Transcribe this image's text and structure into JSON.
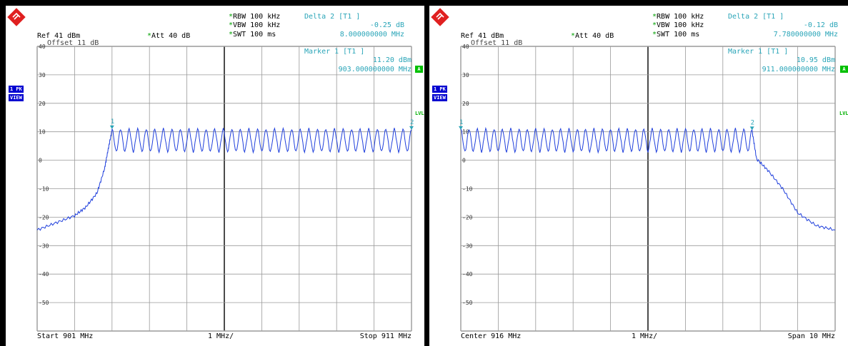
{
  "panels": [
    {
      "id": "left",
      "header": {
        "ref": "Ref  41 dBm",
        "att_label": "Att  40 dB",
        "rbw": "RBW 100 kHz",
        "vbw": "VBW 100 kHz",
        "swt": "SWT 100 ms",
        "delta_title": "Delta 2 [T1 ]",
        "delta_level": "-0.25 dB",
        "delta_freq": "8.000000000 MHz",
        "offset_label": "Offset  11 dB",
        "marker_title": "Marker 1 [T1 ]",
        "marker_level": "11.20 dBm",
        "marker_freq": "903.000000000 MHz"
      },
      "footer": {
        "left": "Start 901 MHz",
        "center": "1 MHz/",
        "right": "Stop 911 MHz"
      },
      "side": {
        "trace_label": "1 PK",
        "view_label": "VIEW",
        "a_label": "A",
        "lvl_label": "LVL"
      },
      "marker_labels": [
        "1",
        "2"
      ]
    },
    {
      "id": "right",
      "header": {
        "ref": "Ref  41 dBm",
        "att_label": "Att  40 dB",
        "rbw": "RBW 100 kHz",
        "vbw": "VBW 100 kHz",
        "swt": "SWT 100 ms",
        "delta_title": "Delta 2 [T1 ]",
        "delta_level": "-0.12 dB",
        "delta_freq": "7.780000000 MHz",
        "offset_label": "Offset  11 dB",
        "marker_title": "Marker 1 [T1 ]",
        "marker_level": "10.95 dBm",
        "marker_freq": "911.000000000 MHz"
      },
      "footer": {
        "left": "Center 916 MHz",
        "center": "1 MHz/",
        "right": "Span 10 MHz"
      },
      "side": {
        "trace_label": "1 PK",
        "view_label": "VIEW",
        "a_label": "A",
        "lvl_label": "LVL"
      },
      "marker_labels": [
        "1",
        "2"
      ]
    }
  ],
  "chart_data": [
    {
      "type": "line",
      "title": "",
      "xlabel": "",
      "ylabel": "",
      "x_range_mhz": [
        901,
        911
      ],
      "ylim": [
        -60,
        40
      ],
      "y_ticks": [
        40,
        30,
        20,
        10,
        0,
        -10,
        -20,
        -30,
        -40,
        -50
      ],
      "grid": true,
      "series": [
        {
          "x": [
            901.0,
            901.5,
            902.0,
            902.3,
            902.6,
            902.8,
            902.9,
            903.0
          ],
          "y": [
            -24.5,
            -22.0,
            -19.5,
            -16.5,
            -11.5,
            -3.0,
            4.0,
            10.5
          ]
        }
      ],
      "hopping_band": {
        "x_start": 903.0,
        "x_end": 911.0,
        "channels": 35,
        "peak": 11.0,
        "trough": 3.0
      },
      "markers": [
        {
          "label": "1",
          "x": 903.0,
          "y": 11.2
        },
        {
          "label": "2",
          "x": 911.0,
          "y": 10.95
        }
      ]
    },
    {
      "type": "line",
      "title": "",
      "xlabel": "",
      "ylabel": "",
      "x_range_mhz": [
        911,
        921
      ],
      "ylim": [
        -60,
        40
      ],
      "y_ticks": [
        40,
        30,
        20,
        10,
        0,
        -10,
        -20,
        -30,
        -40,
        -50
      ],
      "grid": true,
      "hopping_band": {
        "x_start": 911.0,
        "x_end": 918.78,
        "channels": 35,
        "peak": 11.0,
        "trough": 3.0
      },
      "series": [
        {
          "x": [
            918.78,
            918.9,
            919.2,
            919.6,
            920.0,
            920.5,
            921.0
          ],
          "y": [
            10.5,
            0.5,
            -3.5,
            -10.0,
            -18.5,
            -23.0,
            -24.5
          ]
        }
      ],
      "markers": [
        {
          "label": "1",
          "x": 911.0,
          "y": 10.95
        },
        {
          "label": "2",
          "x": 918.78,
          "y": 10.83
        }
      ]
    }
  ]
}
